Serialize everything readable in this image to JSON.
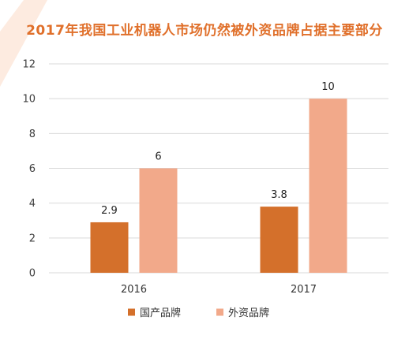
{
  "chart_data": {
    "type": "bar",
    "title": "2017年我国工业机器人市场仍然被外资品牌占据主要部分",
    "categories": [
      "2016",
      "2017"
    ],
    "series": [
      {
        "name": "国产品牌",
        "values": [
          2.9,
          3.8
        ],
        "labels": [
          "2.9",
          "3.8"
        ],
        "color": "#d4702b"
      },
      {
        "name": "外资品牌",
        "values": [
          6,
          10
        ],
        "labels": [
          "6",
          "10"
        ],
        "color": "#f2a98a"
      }
    ],
    "yticks": [
      "0",
      "2",
      "4",
      "6",
      "8",
      "10",
      "12"
    ],
    "ylim": [
      0,
      12
    ],
    "grid": true,
    "legend_position": "bottom"
  },
  "colors": {
    "title": "#e0702b",
    "grid": "#d9d9d9",
    "decor": "#fbe3d3"
  }
}
